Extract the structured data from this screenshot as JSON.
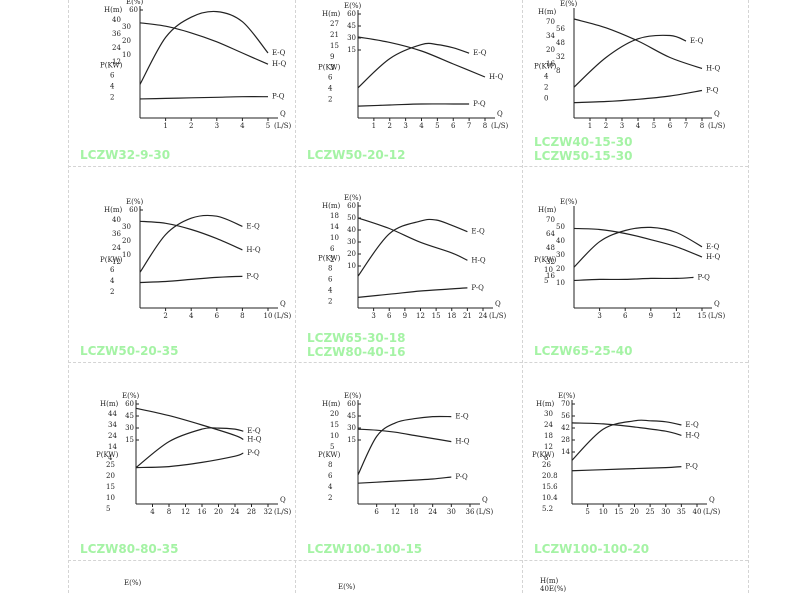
{
  "colors": {
    "model_label": "#a5f3a5",
    "ink": "#222222",
    "grid": "#d4d4d4"
  },
  "chart_data": [
    {
      "type": "line",
      "model": "LCZW32-9-30",
      "x_ticks": [
        "1",
        "2",
        "3",
        "4",
        "5"
      ],
      "x_max": 5,
      "H_label": "H(m)",
      "H_ticks": [
        "40",
        "30",
        "36",
        "20",
        "24",
        "10",
        "12"
      ],
      "E_label": "E(%)",
      "E_ticks": [
        "60"
      ],
      "P_label": "P(KW)",
      "P_ticks": [
        "6",
        "4",
        "2"
      ],
      "x_label": "Q",
      "x_unit": "(L/S)",
      "series": [
        {
          "name": "H-Q",
          "x": [
            0,
            1,
            2,
            3,
            4,
            5
          ],
          "y": [
            0.85,
            0.82,
            0.76,
            0.68,
            0.58,
            0.48
          ]
        },
        {
          "name": "E-Q",
          "x": [
            0,
            1,
            2,
            3,
            4,
            5
          ],
          "y": [
            0.3,
            0.72,
            0.9,
            0.95,
            0.86,
            0.58
          ]
        },
        {
          "name": "P-Q",
          "x": [
            0,
            1,
            2,
            3,
            4,
            5
          ],
          "y": [
            0.17,
            0.175,
            0.18,
            0.185,
            0.19,
            0.19
          ]
        }
      ]
    },
    {
      "type": "line",
      "model": "LCZW50-20-12",
      "x_ticks": [
        "1",
        "2",
        "3",
        "4",
        "5",
        "6",
        "7",
        "8"
      ],
      "x_max": 8,
      "H_label": "H(m)",
      "H_ticks": [
        "27",
        "21",
        "15",
        "9",
        "3"
      ],
      "E_label": "E(%)",
      "E_ticks": [
        "60",
        "45",
        "30",
        "15"
      ],
      "P_label": "P(KW)",
      "P_ticks": [
        "6",
        "4",
        "2"
      ],
      "x_label": "Q",
      "x_unit": "(L/S)",
      "series": [
        {
          "name": "H-Q",
          "x": [
            0,
            2,
            4,
            6,
            8
          ],
          "y": [
            0.75,
            0.7,
            0.62,
            0.5,
            0.38
          ]
        },
        {
          "name": "E-Q",
          "x": [
            0,
            2,
            4,
            5,
            6,
            7
          ],
          "y": [
            0.28,
            0.55,
            0.68,
            0.68,
            0.65,
            0.6
          ]
        },
        {
          "name": "P-Q",
          "x": [
            0,
            2,
            4,
            6,
            7
          ],
          "y": [
            0.11,
            0.12,
            0.13,
            0.13,
            0.13
          ]
        }
      ]
    },
    {
      "type": "line",
      "model": "LCZW40-15-30",
      "model2": "LCZW50-15-30",
      "x_ticks": [
        "1",
        "2",
        "3",
        "4",
        "5",
        "6",
        "7",
        "8"
      ],
      "x_max": 8,
      "H_label": "H(m)",
      "H_ticks": [
        "70",
        "56",
        "34",
        "48",
        "20",
        "32",
        "16",
        "8"
      ],
      "E_label": "E(%)",
      "E_ticks": [],
      "P_label": "P(KW)",
      "P_ticks": [
        "4",
        "2",
        "0"
      ],
      "x_label": "Q",
      "x_unit": "(L/S)",
      "series": [
        {
          "name": "H-Q",
          "x": [
            0,
            2,
            4,
            6,
            8
          ],
          "y": [
            0.9,
            0.82,
            0.7,
            0.55,
            0.45
          ]
        },
        {
          "name": "E-Q",
          "x": [
            0,
            2,
            4,
            6,
            7
          ],
          "y": [
            0.28,
            0.55,
            0.72,
            0.75,
            0.7
          ]
        },
        {
          "name": "P-Q",
          "x": [
            0,
            2,
            4,
            6,
            8
          ],
          "y": [
            0.14,
            0.15,
            0.17,
            0.2,
            0.25
          ]
        }
      ]
    },
    {
      "type": "line",
      "model": "LCZW50-20-35",
      "x_ticks": [
        "2",
        "4",
        "6",
        "8",
        "10"
      ],
      "x_max": 10,
      "H_label": "H(m)",
      "H_ticks": [
        "40",
        "30",
        "36",
        "20",
        "24",
        "10",
        "12"
      ],
      "E_label": "E(%)",
      "E_ticks": [
        "60"
      ],
      "P_label": "P(KW)",
      "P_ticks": [
        "6",
        "4",
        "2"
      ],
      "x_label": "Q",
      "x_unit": "(L/S)",
      "series": [
        {
          "name": "H-Q",
          "x": [
            0,
            2,
            4,
            6,
            8
          ],
          "y": [
            0.85,
            0.83,
            0.77,
            0.68,
            0.57
          ]
        },
        {
          "name": "E-Q",
          "x": [
            0,
            2,
            4,
            6,
            8
          ],
          "y": [
            0.35,
            0.72,
            0.88,
            0.9,
            0.8
          ]
        },
        {
          "name": "P-Q",
          "x": [
            0,
            2,
            4,
            6,
            8
          ],
          "y": [
            0.25,
            0.26,
            0.28,
            0.3,
            0.31
          ]
        }
      ]
    },
    {
      "type": "line",
      "model": "LCZW65-30-18",
      "model2": "LCZW80-40-16",
      "x_ticks": [
        "3",
        "6",
        "9",
        "12",
        "15",
        "18",
        "21",
        "24"
      ],
      "x_max": 24,
      "H_label": "H(m)",
      "H_ticks": [
        "18",
        "14",
        "10",
        "6",
        "2"
      ],
      "E_label": "E(%)",
      "E_ticks": [
        "60",
        "50",
        "40",
        "30",
        "20",
        "10"
      ],
      "P_label": "P(KW)",
      "P_ticks": [
        "8",
        "6",
        "4",
        "2"
      ],
      "x_label": "Q",
      "x_unit": "(L/S)",
      "series": [
        {
          "name": "H-Q",
          "x": [
            0,
            6,
            12,
            18,
            21
          ],
          "y": [
            0.85,
            0.75,
            0.62,
            0.52,
            0.45
          ]
        },
        {
          "name": "E-Q",
          "x": [
            0,
            6,
            12,
            15,
            18,
            21
          ],
          "y": [
            0.3,
            0.7,
            0.82,
            0.83,
            0.78,
            0.72
          ]
        },
        {
          "name": "P-Q",
          "x": [
            0,
            6,
            12,
            18,
            21
          ],
          "y": [
            0.1,
            0.13,
            0.16,
            0.18,
            0.19
          ]
        }
      ]
    },
    {
      "type": "line",
      "model": "LCZW65-25-40",
      "x_ticks": [
        "3",
        "6",
        "9",
        "12",
        "15"
      ],
      "x_max": 15,
      "H_label": "H(m)",
      "H_ticks": [
        "70",
        "50",
        "64",
        "40",
        "48",
        "30",
        "32",
        "20",
        "16",
        "10"
      ],
      "E_label": "E(%)",
      "E_ticks": [],
      "P_label": "P(KW)",
      "P_ticks": [
        "10",
        "5"
      ],
      "x_label": "Q",
      "x_unit": "(L/S)",
      "series": [
        {
          "name": "H-Q",
          "x": [
            0,
            3,
            6,
            9,
            12,
            15
          ],
          "y": [
            0.78,
            0.77,
            0.73,
            0.67,
            0.6,
            0.5
          ]
        },
        {
          "name": "E-Q",
          "x": [
            0,
            3,
            6,
            9,
            12,
            15
          ],
          "y": [
            0.4,
            0.65,
            0.76,
            0.79,
            0.74,
            0.6
          ]
        },
        {
          "name": "P-Q",
          "x": [
            0,
            3,
            6,
            9,
            12,
            14
          ],
          "y": [
            0.27,
            0.28,
            0.28,
            0.29,
            0.29,
            0.3
          ]
        }
      ]
    },
    {
      "type": "line",
      "model": "LCZW80-80-35",
      "x_ticks": [
        "4",
        "8",
        "12",
        "16",
        "20",
        "24",
        "28",
        "32"
      ],
      "x_max": 32,
      "H_label": "H(m)",
      "H_ticks": [
        "44",
        "34",
        "24",
        "14",
        "4"
      ],
      "E_label": "E(%)",
      "E_ticks": [
        "60",
        "45",
        "30",
        "15"
      ],
      "P_label": "P(KW)",
      "P_ticks": [
        "25",
        "20",
        "15",
        "10",
        "5"
      ],
      "x_label": "Q",
      "x_unit": "(L/S)",
      "series": [
        {
          "name": "H-Q",
          "x": [
            0,
            8,
            16,
            24,
            26
          ],
          "y": [
            0.92,
            0.85,
            0.76,
            0.66,
            0.62
          ]
        },
        {
          "name": "E-Q",
          "x": [
            0,
            8,
            16,
            20,
            24,
            26
          ],
          "y": [
            0.35,
            0.6,
            0.72,
            0.73,
            0.72,
            0.7
          ]
        },
        {
          "name": "P-Q",
          "x": [
            0,
            8,
            16,
            24,
            26
          ],
          "y": [
            0.35,
            0.36,
            0.4,
            0.46,
            0.49
          ]
        }
      ]
    },
    {
      "type": "line",
      "model": "LCZW100-100-15",
      "x_ticks": [
        "6",
        "12",
        "18",
        "24",
        "30",
        "36"
      ],
      "x_max": 36,
      "H_label": "H(m)",
      "H_ticks": [
        "20",
        "15",
        "10",
        "5"
      ],
      "E_label": "E(%)",
      "E_ticks": [
        "60",
        "45",
        "30",
        "15"
      ],
      "P_label": "P(KW)",
      "P_ticks": [
        "8",
        "6",
        "4",
        "2"
      ],
      "x_label": "Q",
      "x_unit": "(L/S)",
      "series": [
        {
          "name": "H-Q",
          "x": [
            0,
            6,
            12,
            18,
            24,
            30
          ],
          "y": [
            0.72,
            0.71,
            0.69,
            0.66,
            0.63,
            0.6
          ]
        },
        {
          "name": "E-Q",
          "x": [
            0,
            6,
            12,
            18,
            24,
            30
          ],
          "y": [
            0.28,
            0.65,
            0.78,
            0.82,
            0.84,
            0.84
          ]
        },
        {
          "name": "P-Q",
          "x": [
            0,
            6,
            12,
            18,
            24,
            30
          ],
          "y": [
            0.2,
            0.21,
            0.22,
            0.23,
            0.24,
            0.26
          ]
        }
      ]
    },
    {
      "type": "line",
      "model": "LCZW100-100-20",
      "x_ticks": [
        "5",
        "10",
        "15",
        "20",
        "25",
        "30",
        "35",
        "40"
      ],
      "x_max": 40,
      "H_label": "H(m)",
      "H_ticks": [
        "30",
        "24",
        "18",
        "12",
        "6"
      ],
      "E_label": "E(%)",
      "E_ticks": [
        "70",
        "56",
        "42",
        "28",
        "14"
      ],
      "P_label": "P(KW)",
      "P_ticks": [
        "26",
        "20.8",
        "15.6",
        "10.4",
        "5.2"
      ],
      "x_label": "Q",
      "x_unit": "(L/S)",
      "series": [
        {
          "name": "H-Q",
          "x": [
            0,
            10,
            20,
            30,
            35
          ],
          "y": [
            0.78,
            0.77,
            0.74,
            0.7,
            0.66
          ]
        },
        {
          "name": "E-Q",
          "x": [
            0,
            10,
            20,
            25,
            30,
            35
          ],
          "y": [
            0.42,
            0.72,
            0.8,
            0.8,
            0.79,
            0.76
          ]
        },
        {
          "name": "P-Q",
          "x": [
            0,
            10,
            20,
            30,
            35
          ],
          "y": [
            0.32,
            0.33,
            0.34,
            0.35,
            0.36
          ]
        }
      ]
    }
  ],
  "bottom_row_labels": [
    {
      "top": "",
      "bottom": "E(%)"
    },
    {
      "top": "",
      "bottom": "E(%)"
    },
    {
      "top": "H(m)",
      "bottom": "40E(%)"
    }
  ]
}
